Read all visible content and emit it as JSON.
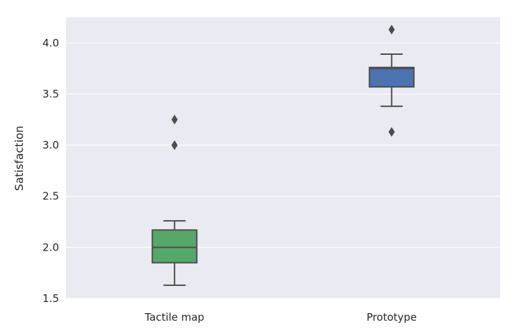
{
  "chart_data": {
    "type": "box",
    "title": "",
    "xlabel": "",
    "ylabel": "Satisfaction",
    "ylim": [
      1.5,
      4.25
    ],
    "yticks": [
      1.5,
      2.0,
      2.5,
      3.0,
      3.5,
      4.0
    ],
    "ytick_labels": [
      "1.5",
      "2.0",
      "2.5",
      "3.0",
      "3.5",
      "4.0"
    ],
    "grid": true,
    "background": "#eaeaf2",
    "categories": [
      "Tactile map",
      "Prototype"
    ],
    "boxes": [
      {
        "category": "Tactile map",
        "color": "#55a868",
        "whisker_low": 1.63,
        "q1": 1.85,
        "median": 2.0,
        "q3": 2.17,
        "whisker_high": 2.26,
        "outliers": [
          3.0,
          3.25
        ]
      },
      {
        "category": "Prototype",
        "color": "#4c72b0",
        "whisker_low": 3.38,
        "q1": 3.57,
        "median": 3.75,
        "q3": 3.76,
        "whisker_high": 3.89,
        "outliers": [
          3.13,
          4.13
        ]
      }
    ]
  }
}
